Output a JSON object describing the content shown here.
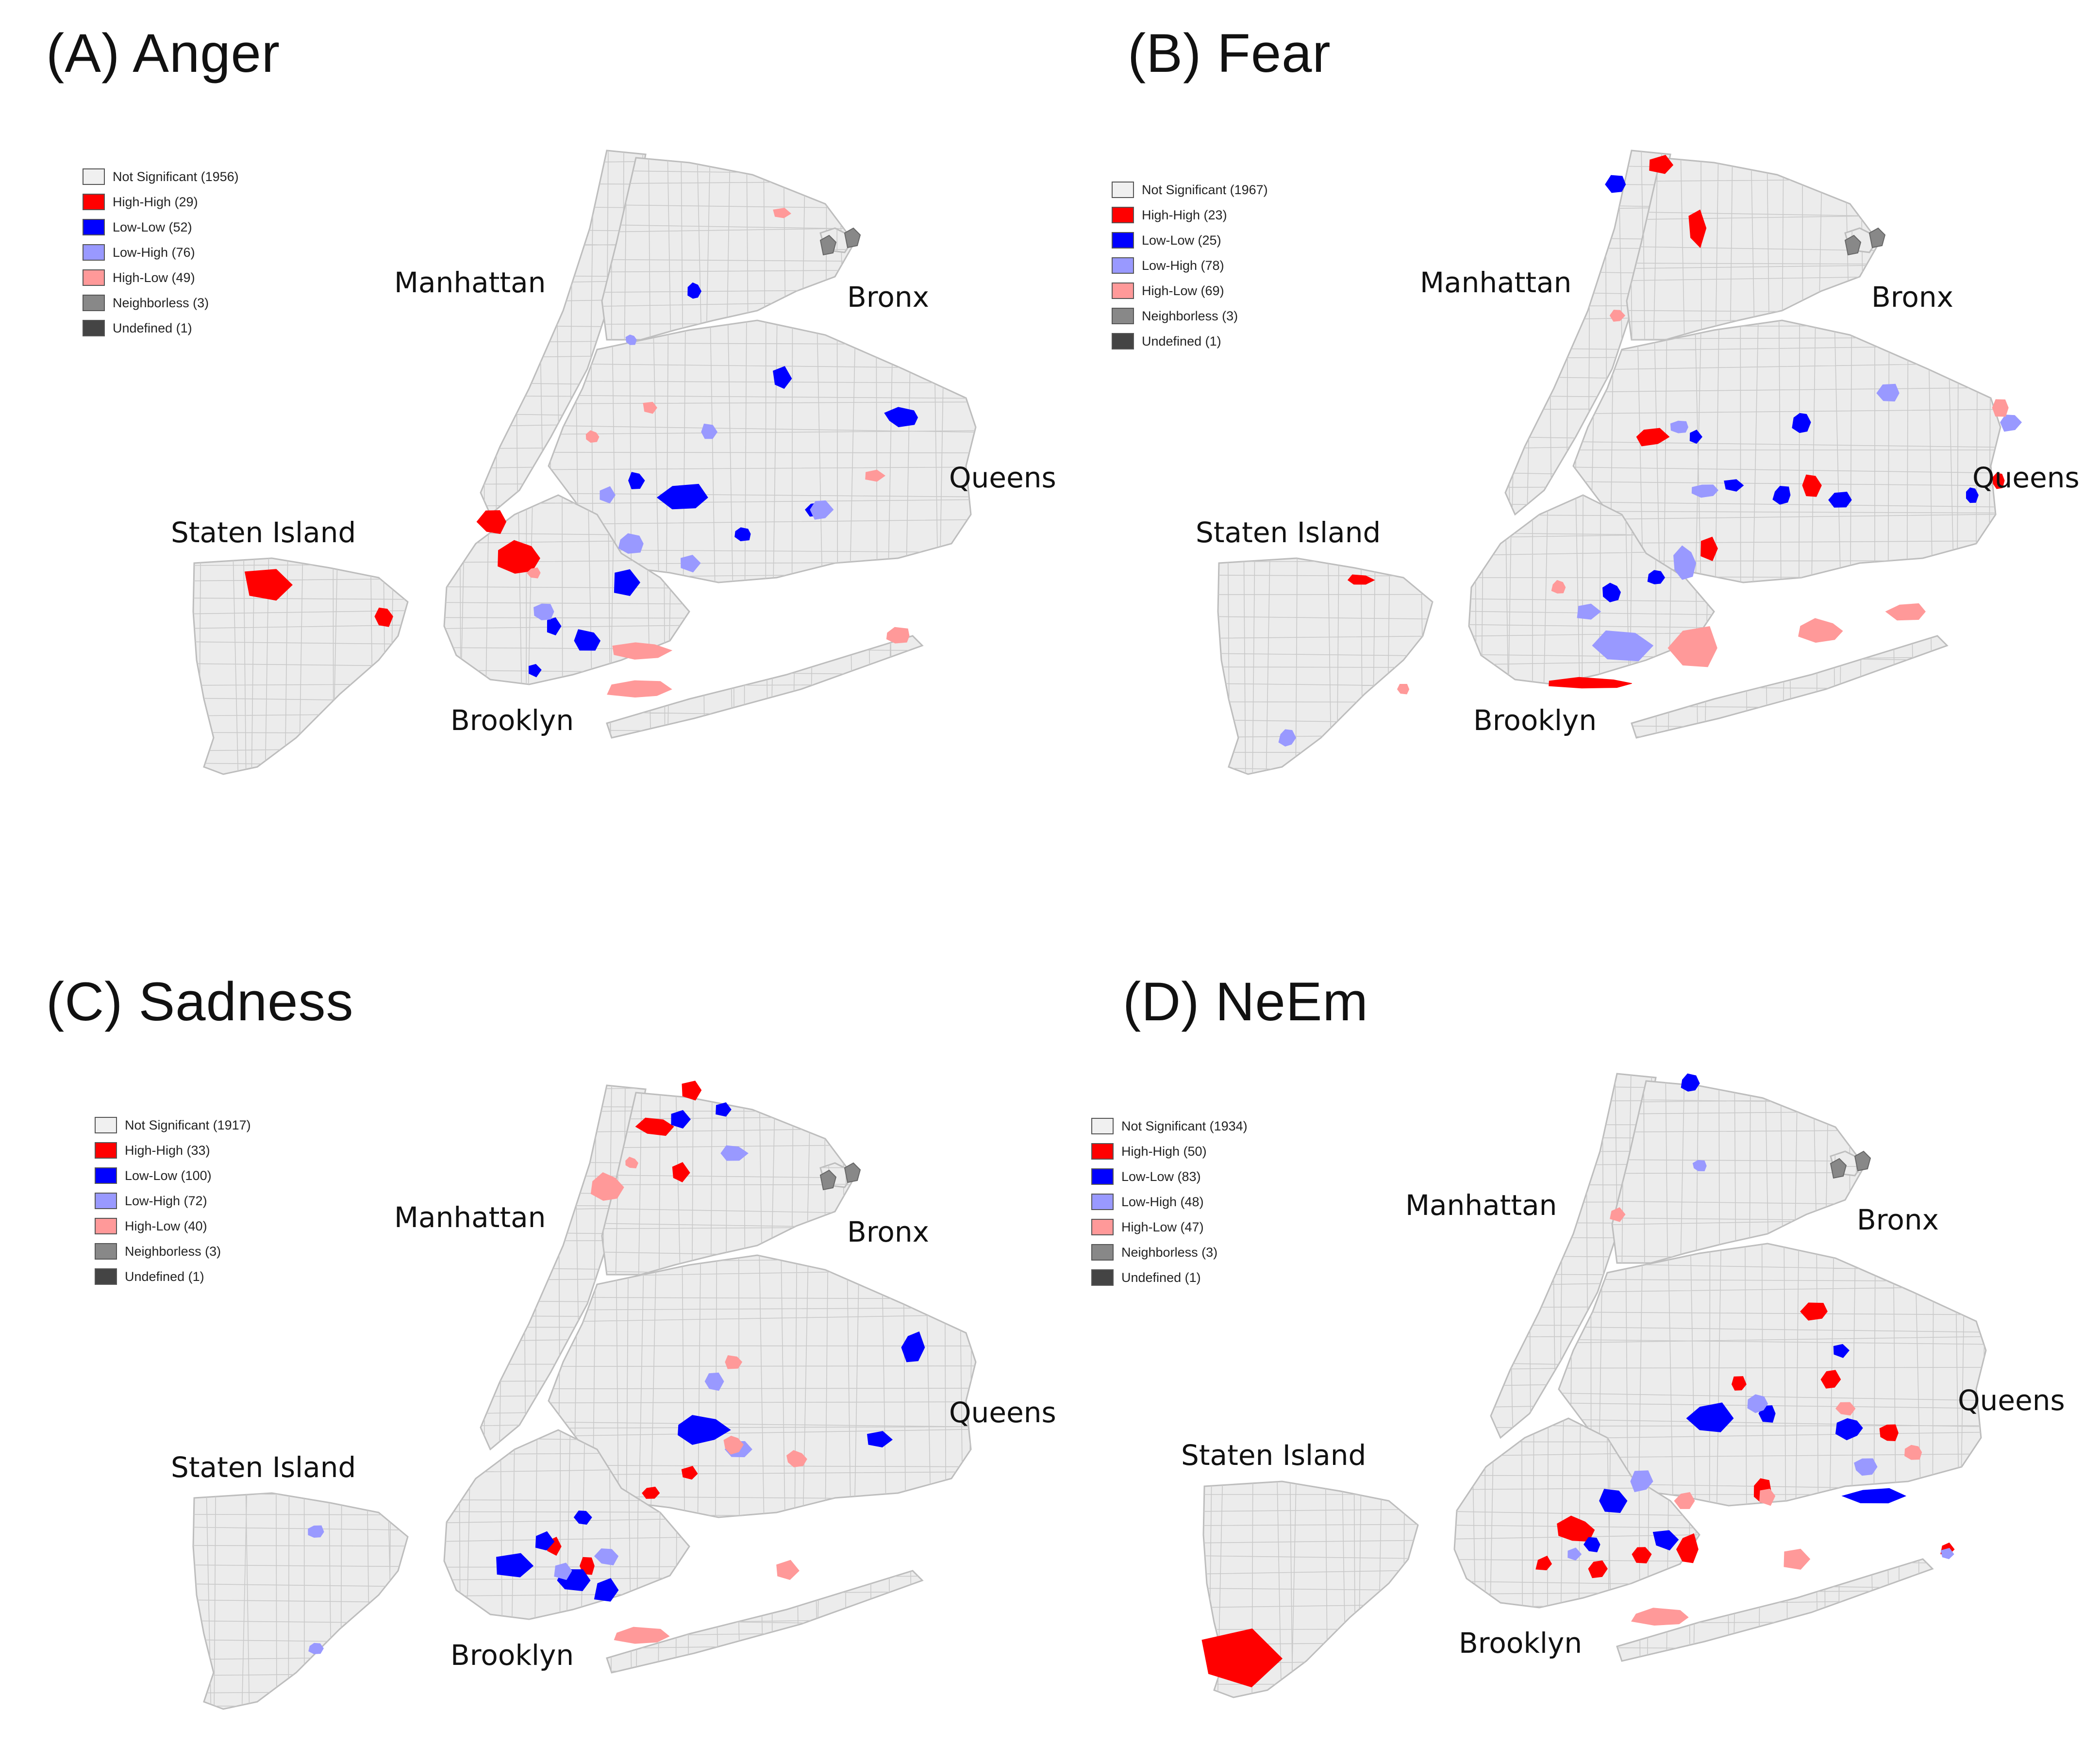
{
  "panels": [
    {
      "title": "(A) Anger",
      "legend": [
        {
          "label": "Not Significant (1956)",
          "color": "#f0f0f0"
        },
        {
          "label": "High-High (29)",
          "color": "#ff0000"
        },
        {
          "label": "Low-Low (52)",
          "color": "#0000ff"
        },
        {
          "label": "Low-High (76)",
          "color": "#9999ff"
        },
        {
          "label": "High-Low (49)",
          "color": "#ff9999"
        },
        {
          "label": "Neighborless (3)",
          "color": "#888888"
        },
        {
          "label": "Undefined (1)",
          "color": "#444444"
        }
      ],
      "boroughs": {
        "manhattan": "Manhattan",
        "bronx": "Bronx",
        "queens": "Queens",
        "staten_island": "Staten Island",
        "brooklyn": "Brooklyn"
      }
    },
    {
      "title": "(B) Fear",
      "legend": [
        {
          "label": "Not Significant (1967)",
          "color": "#f0f0f0"
        },
        {
          "label": "High-High (23)",
          "color": "#ff0000"
        },
        {
          "label": "Low-Low (25)",
          "color": "#0000ff"
        },
        {
          "label": "Low-High (78)",
          "color": "#9999ff"
        },
        {
          "label": "High-Low (69)",
          "color": "#ff9999"
        },
        {
          "label": "Neighborless (3)",
          "color": "#888888"
        },
        {
          "label": "Undefined (1)",
          "color": "#444444"
        }
      ],
      "boroughs": {
        "manhattan": "Manhattan",
        "bronx": "Bronx",
        "queens": "Queens",
        "staten_island": "Staten Island",
        "brooklyn": "Brooklyn"
      }
    },
    {
      "title": "(C) Sadness",
      "legend": [
        {
          "label": "Not Significant (1917)",
          "color": "#f0f0f0"
        },
        {
          "label": "High-High (33)",
          "color": "#ff0000"
        },
        {
          "label": "Low-Low (100)",
          "color": "#0000ff"
        },
        {
          "label": "Low-High (72)",
          "color": "#9999ff"
        },
        {
          "label": "High-Low (40)",
          "color": "#ff9999"
        },
        {
          "label": "Neighborless (3)",
          "color": "#888888"
        },
        {
          "label": "Undefined (1)",
          "color": "#444444"
        }
      ],
      "boroughs": {
        "manhattan": "Manhattan",
        "bronx": "Bronx",
        "queens": "Queens",
        "staten_island": "Staten Island",
        "brooklyn": "Brooklyn"
      }
    },
    {
      "title": "(D) NeEm",
      "legend": [
        {
          "label": "Not Significant (1934)",
          "color": "#f0f0f0"
        },
        {
          "label": "High-High (50)",
          "color": "#ff0000"
        },
        {
          "label": "Low-Low (83)",
          "color": "#0000ff"
        },
        {
          "label": "Low-High (48)",
          "color": "#9999ff"
        },
        {
          "label": "High-Low (47)",
          "color": "#ff9999"
        },
        {
          "label": "Neighborless (3)",
          "color": "#888888"
        },
        {
          "label": "Undefined (1)",
          "color": "#444444"
        }
      ],
      "boroughs": {
        "manhattan": "Manhattan",
        "bronx": "Bronx",
        "queens": "Queens",
        "staten_island": "Staten Island",
        "brooklyn": "Brooklyn"
      }
    }
  ],
  "colors": {
    "land": "#ececec",
    "tract_border": "#c9c9c9",
    "high_high": "#ff0000",
    "low_low": "#0000ff",
    "low_high": "#9999ff",
    "high_low": "#ff9999",
    "neighborless": "#888888"
  }
}
